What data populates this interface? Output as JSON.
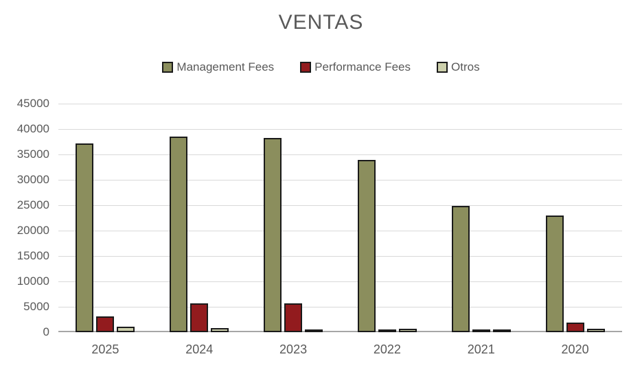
{
  "title": "VENTAS",
  "colors": {
    "text": "#595959",
    "gridline": "#D9D9D9",
    "axis_line": "#A6A6A6",
    "bar_border": "#1A1A1A",
    "background": "#FFFFFF"
  },
  "chart_data": {
    "type": "bar",
    "title": "VENTAS",
    "xlabel": "",
    "ylabel": "",
    "categories": [
      "2025",
      "2024",
      "2023",
      "2022",
      "2021",
      "2020"
    ],
    "series": [
      {
        "name": "Management Fees",
        "color": "#8B8E5D",
        "values": [
          37200,
          38500,
          38200,
          33900,
          24900,
          23000
        ]
      },
      {
        "name": "Performance Fees",
        "color": "#921B1E",
        "values": [
          3100,
          5700,
          5700,
          550,
          150,
          1950
        ]
      },
      {
        "name": "Otros",
        "color": "#CDD0AC",
        "values": [
          1150,
          800,
          500,
          650,
          450,
          700
        ]
      }
    ],
    "ylim": [
      0,
      45000
    ],
    "yticks": [
      0,
      5000,
      10000,
      15000,
      20000,
      25000,
      30000,
      35000,
      40000,
      45000
    ],
    "ytick_labels": [
      "0",
      "5000",
      "10000",
      "15000",
      "20000",
      "25000",
      "30000",
      "35000",
      "40000",
      "45000"
    ],
    "grid": true,
    "legend_position": "top"
  }
}
